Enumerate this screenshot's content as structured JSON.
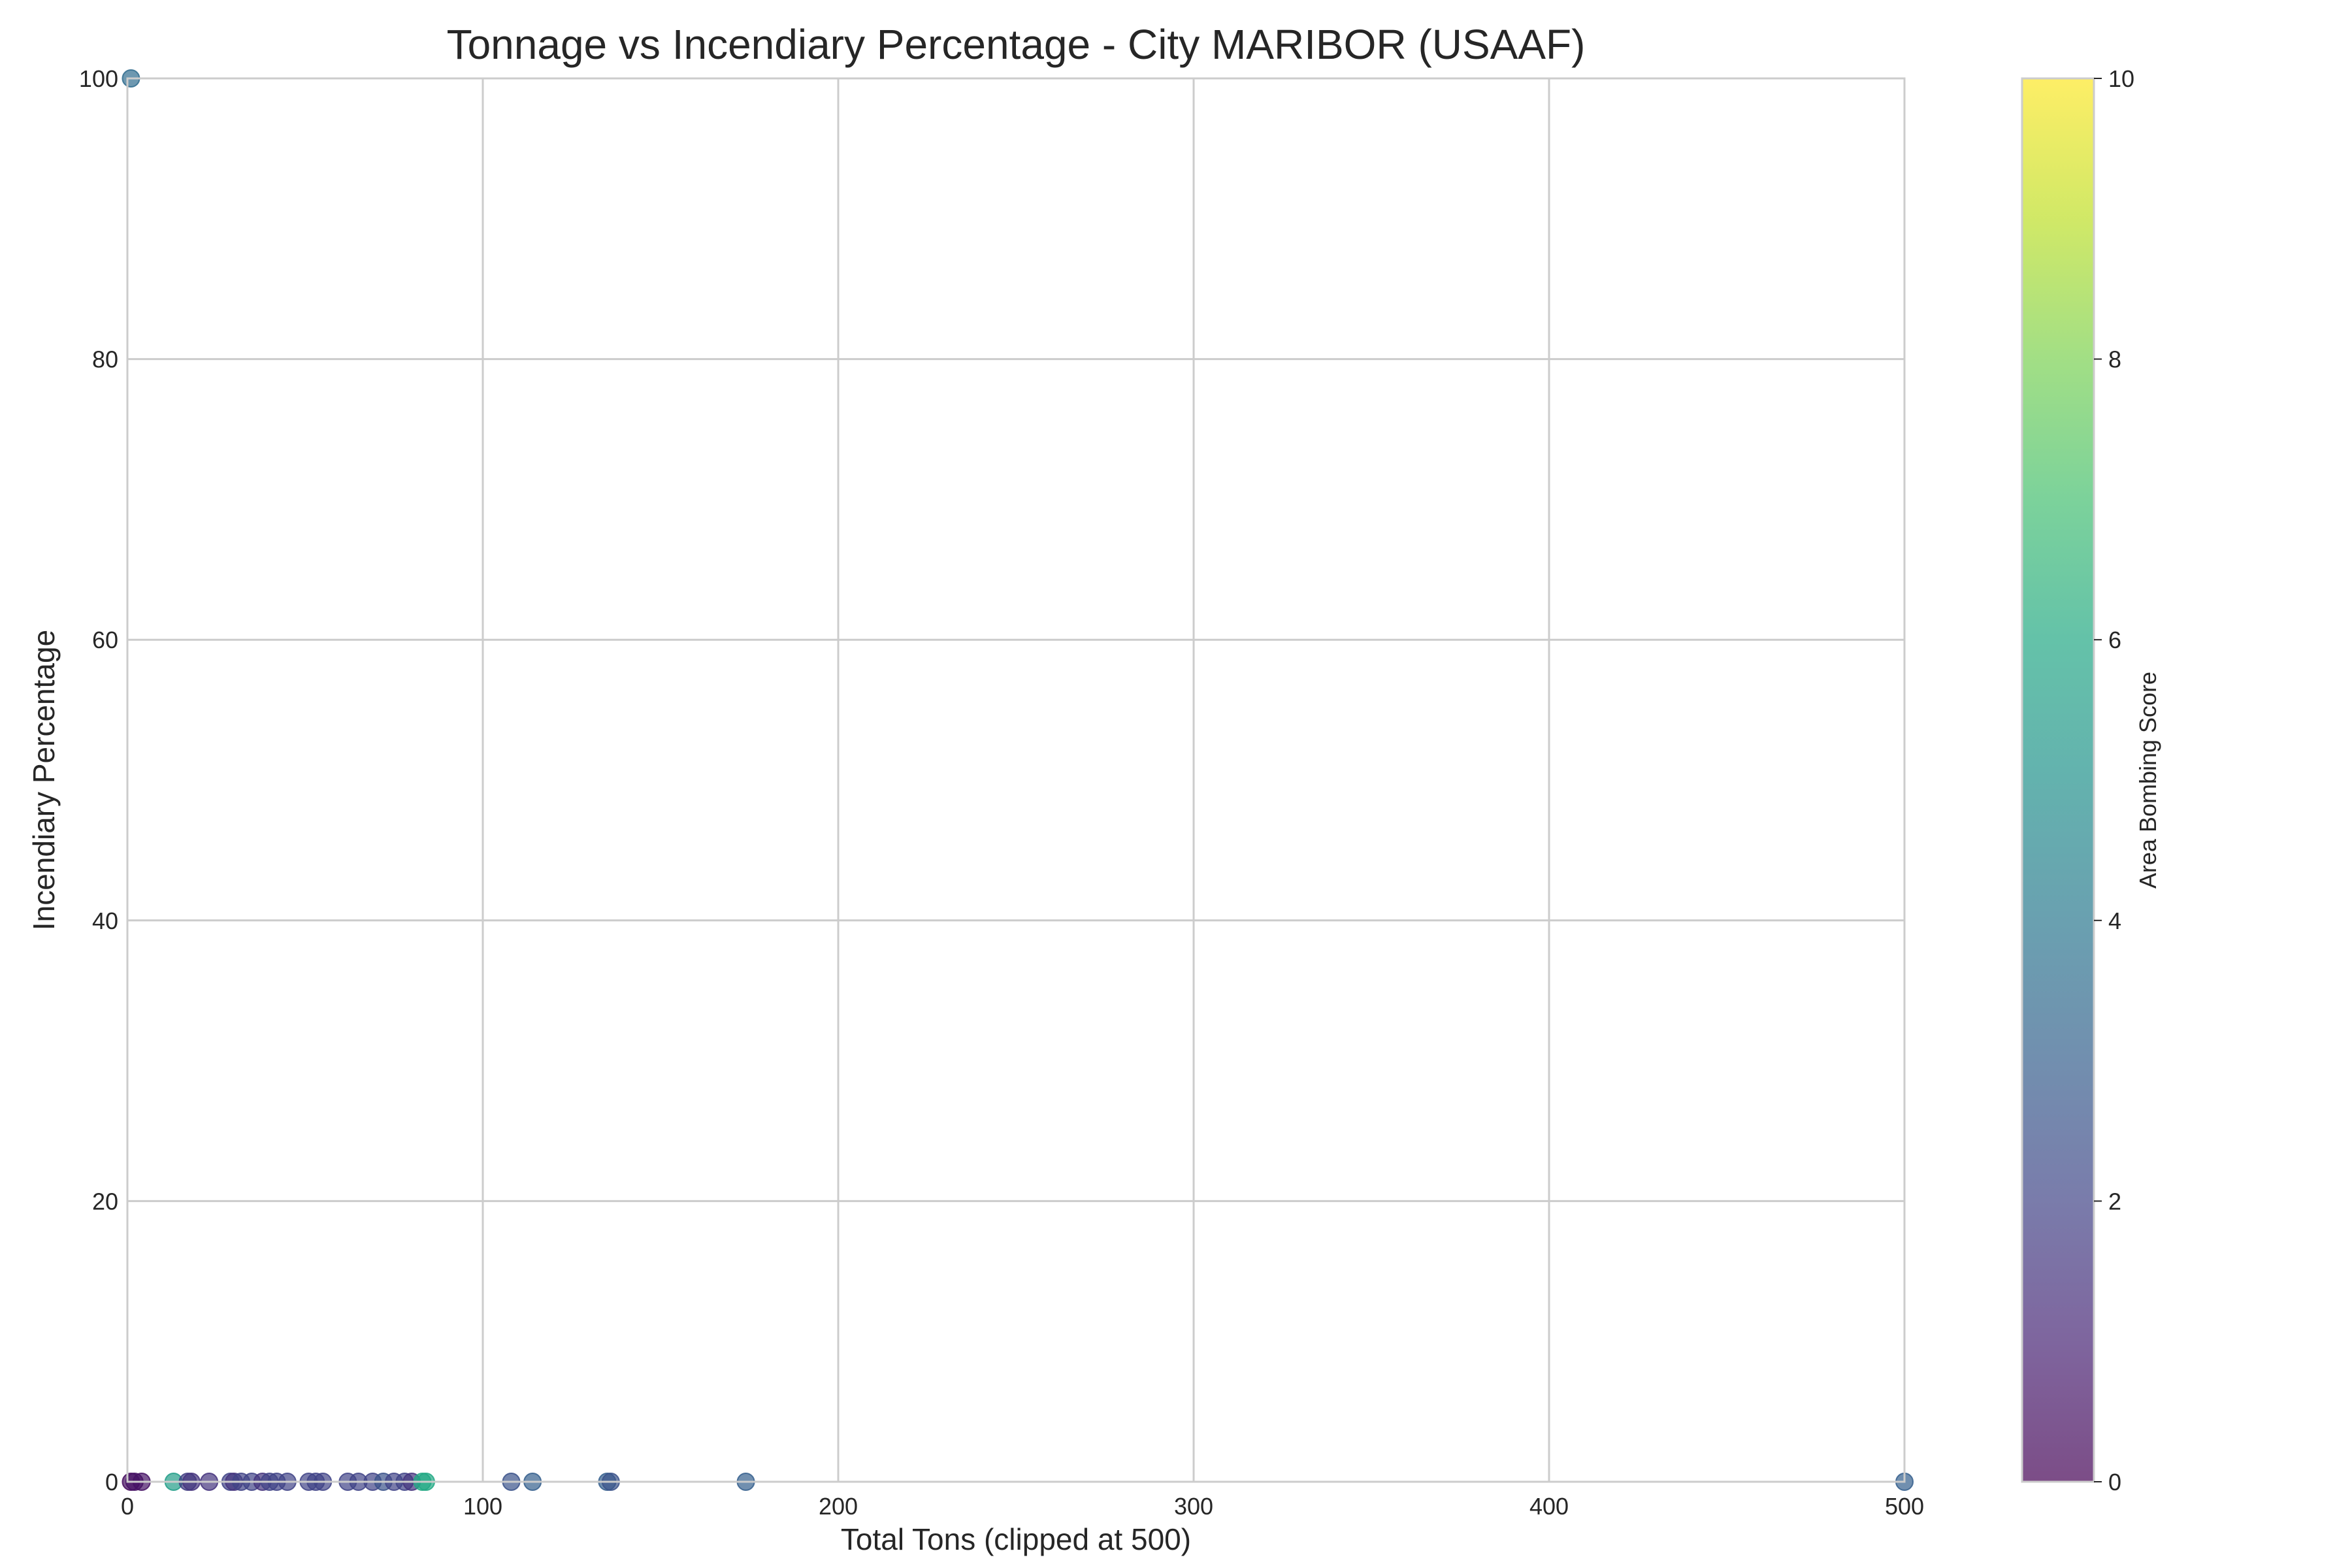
{
  "chart_data": {
    "type": "scatter",
    "title": "Tonnage vs Incendiary Percentage - City MARIBOR (USAAF)",
    "xlabel": "Total Tons (clipped at 500)",
    "ylabel": "Incendiary Percentage",
    "xlim": [
      0,
      500
    ],
    "ylim": [
      0,
      100
    ],
    "xticks": [
      "0",
      "100",
      "200",
      "300",
      "400",
      "500"
    ],
    "yticks": [
      "0",
      "20",
      "40",
      "60",
      "80",
      "100"
    ],
    "grid": true,
    "colorbar": {
      "label": "Area Bombing Score",
      "range": [
        0,
        10
      ],
      "ticks": [
        "0",
        "2",
        "4",
        "6",
        "8",
        "10"
      ],
      "colormap": "viridis",
      "alpha": 0.7
    },
    "points": [
      {
        "x": 1,
        "y": 100,
        "c": 3.5
      },
      {
        "x": 1,
        "y": 0,
        "c": 0.3
      },
      {
        "x": 2,
        "y": 0,
        "c": 0.5
      },
      {
        "x": 4,
        "y": 0,
        "c": 0.5
      },
      {
        "x": 13,
        "y": 0,
        "c": 5.5
      },
      {
        "x": 17,
        "y": 0,
        "c": 1.8
      },
      {
        "x": 18,
        "y": 0,
        "c": 1.5
      },
      {
        "x": 23,
        "y": 0,
        "c": 1.5
      },
      {
        "x": 29,
        "y": 0,
        "c": 2.0
      },
      {
        "x": 30,
        "y": 0,
        "c": 1.5
      },
      {
        "x": 32,
        "y": 0,
        "c": 2.0
      },
      {
        "x": 35,
        "y": 0,
        "c": 2.0
      },
      {
        "x": 38,
        "y": 0,
        "c": 1.5
      },
      {
        "x": 40,
        "y": 0,
        "c": 2.0
      },
      {
        "x": 42,
        "y": 0,
        "c": 2.0
      },
      {
        "x": 45,
        "y": 0,
        "c": 2.0
      },
      {
        "x": 51,
        "y": 0,
        "c": 2.0
      },
      {
        "x": 53,
        "y": 0,
        "c": 2.0
      },
      {
        "x": 55,
        "y": 0,
        "c": 2.0
      },
      {
        "x": 62,
        "y": 0,
        "c": 2.0
      },
      {
        "x": 65,
        "y": 0,
        "c": 2.0
      },
      {
        "x": 69,
        "y": 0,
        "c": 2.0
      },
      {
        "x": 72,
        "y": 0,
        "c": 2.5
      },
      {
        "x": 75,
        "y": 0,
        "c": 2.0
      },
      {
        "x": 78,
        "y": 0,
        "c": 2.0
      },
      {
        "x": 80,
        "y": 0,
        "c": 1.5
      },
      {
        "x": 83,
        "y": 0,
        "c": 6.0
      },
      {
        "x": 84,
        "y": 0,
        "c": 6.0
      },
      {
        "x": 108,
        "y": 0,
        "c": 2.5
      },
      {
        "x": 114,
        "y": 0,
        "c": 3.0
      },
      {
        "x": 135,
        "y": 0,
        "c": 3.0
      },
      {
        "x": 136,
        "y": 0,
        "c": 2.5
      },
      {
        "x": 174,
        "y": 0,
        "c": 3.0
      },
      {
        "x": 500,
        "y": 0,
        "c": 3.0
      }
    ]
  }
}
